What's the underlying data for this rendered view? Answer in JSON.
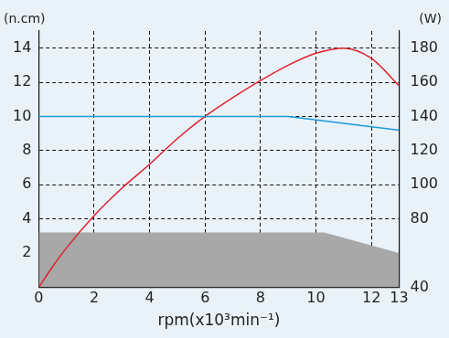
{
  "chart_data": {
    "type": "line",
    "x_label": "rpm(x10³min⁻¹)",
    "y_label": "(n.cm)",
    "y2_label": "(W)",
    "xlim": [
      0,
      13
    ],
    "xticks": [
      0,
      2,
      4,
      6,
      8,
      10,
      12,
      13
    ],
    "ylim": [
      0,
      15
    ],
    "yticks": [
      2,
      4,
      6,
      8,
      10,
      12,
      14
    ],
    "y2lim": [
      40,
      190
    ],
    "y2ticks": [
      40,
      80,
      100,
      120,
      140,
      160,
      180
    ],
    "grid": true,
    "series": [
      {
        "type": "area",
        "color": "#a8a8a8",
        "x": [
          0,
          10.3,
          13
        ],
        "values": [
          3.2,
          3.2,
          2.0
        ]
      },
      {
        "type": "line",
        "color": "#1a9ad6",
        "x": [
          0,
          9,
          13
        ],
        "values": [
          10,
          10,
          9.2
        ]
      },
      {
        "type": "line",
        "color": "#e0202a",
        "axis": "y2",
        "x": [
          0,
          0.5,
          1,
          2,
          3,
          4,
          5,
          6,
          7,
          8,
          9,
          10,
          11,
          12,
          13
        ],
        "values": [
          40,
          52,
          63,
          82,
          98,
          112,
          127,
          140,
          151,
          161,
          170,
          177,
          180,
          174,
          158
        ]
      }
    ]
  }
}
